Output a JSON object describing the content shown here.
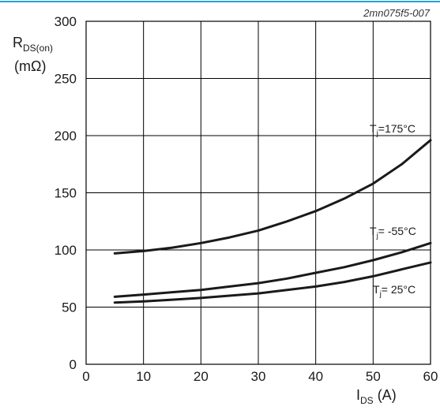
{
  "figure_id": "2mn075f5-007",
  "colors": {
    "top_rule": "#2a9fd6",
    "grid": "#000000",
    "curve": "#1a1a1a",
    "text": "#1a1a1a"
  },
  "axes": {
    "y_title_main": "R",
    "y_title_sub": "DS(on)",
    "y_unit": "(mΩ)",
    "x_title_main": "I",
    "x_title_sub": "DS",
    "x_unit": " (A)"
  },
  "chart_data": {
    "type": "line",
    "xlim": [
      0,
      60
    ],
    "ylim": [
      0,
      300
    ],
    "x_ticks": [
      0,
      10,
      20,
      30,
      40,
      50,
      60
    ],
    "y_ticks": [
      0,
      50,
      100,
      150,
      200,
      250,
      300
    ],
    "grid": true,
    "series": [
      {
        "label_main": "T",
        "label_sub": "j",
        "label_rest": "=175°C",
        "x": [
          5,
          10,
          15,
          20,
          25,
          30,
          35,
          40,
          45,
          50,
          55,
          60
        ],
        "y": [
          97,
          99,
          102,
          106,
          111,
          117,
          125,
          134,
          145,
          158,
          175,
          196
        ]
      },
      {
        "label_main": "T",
        "label_sub": "j",
        "label_rest": "= -55°C",
        "x": [
          5,
          10,
          15,
          20,
          25,
          30,
          35,
          40,
          45,
          50,
          55,
          60
        ],
        "y": [
          59,
          61,
          63,
          65,
          68,
          71,
          75,
          80,
          85,
          91,
          98,
          106
        ]
      },
      {
        "label_main": "T",
        "label_sub": "j",
        "label_rest": "= 25°C",
        "x": [
          5,
          10,
          15,
          20,
          25,
          30,
          35,
          40,
          45,
          50,
          55,
          60
        ],
        "y": [
          54,
          55,
          56.5,
          58,
          60,
          62,
          65,
          68,
          72,
          77,
          83,
          89
        ]
      }
    ]
  }
}
